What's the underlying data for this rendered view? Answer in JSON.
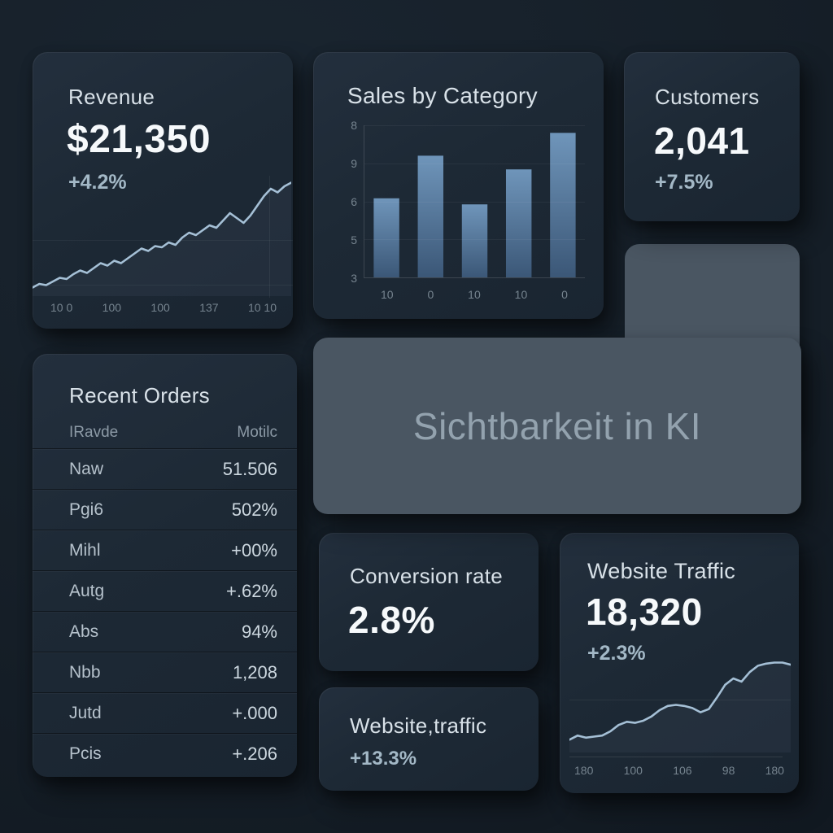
{
  "theme": {
    "background": "#151e27",
    "card_bg": "#1d2935",
    "banner_bg": "#4a5662",
    "title_color": "#d8e1e8",
    "value_color": "#f6f9fb",
    "delta_color": "#a3b8c6",
    "tick_color": "#76848f",
    "line_color": "#a5c0d6",
    "area_fill": "#a8c2d8",
    "bar_color_top": "#6f95ba",
    "bar_color_bottom": "#3b5777"
  },
  "cards": {
    "revenue": {
      "title": "Revenue",
      "value": "$21,350",
      "delta": "+4.2%"
    },
    "sales": {
      "title": "Sales by Category"
    },
    "customers": {
      "title": "Customers",
      "value": "2,041",
      "delta": "+7.5%"
    },
    "orders": {
      "title": "Recent Orders",
      "columns": [
        "IRavde",
        "Motilc"
      ],
      "rows": [
        [
          "Naw",
          "51.506"
        ],
        [
          "Pgi6",
          "502%"
        ],
        [
          "Mihl",
          "+00%"
        ],
        [
          "Autg",
          "+.62%"
        ],
        [
          "Abs",
          "94%"
        ],
        [
          "Nbb",
          "1,208"
        ],
        [
          "Jutd",
          "+.000"
        ],
        [
          "Pcis",
          "+.206"
        ]
      ]
    },
    "banner": {
      "title": "Sichtbarkeit in KI"
    },
    "conversion": {
      "title": "Conversion rate",
      "value": "2.8%"
    },
    "website_small": {
      "title": "Website,traffic",
      "delta": "+13.3%"
    },
    "traffic": {
      "title": "Website Traffic",
      "value": "18,320",
      "delta": "+2.3%"
    }
  },
  "chart_data": [
    {
      "id": "revenue-spark",
      "type": "line",
      "title": "Revenue trend",
      "x_tick_labels": [
        "10 0",
        "100",
        "100",
        "137",
        "10 10"
      ],
      "y": [
        93,
        90,
        91,
        88,
        85,
        86,
        82,
        79,
        81,
        77,
        73,
        75,
        71,
        73,
        69,
        65,
        61,
        63,
        59,
        60,
        56,
        58,
        52,
        48,
        50,
        46,
        42,
        44,
        38,
        32,
        36,
        40,
        34,
        26,
        18,
        12,
        15,
        10,
        7
      ],
      "ylim": [
        0,
        100
      ],
      "grid": true,
      "legend": false
    },
    {
      "id": "sales-bars",
      "type": "bar",
      "title": "Sales by Category",
      "categories": [
        "10",
        "0",
        "10",
        "10",
        "0"
      ],
      "values": [
        52,
        80,
        48,
        71,
        95
      ],
      "y_tick_labels": [
        "8",
        "9",
        "6",
        "5",
        "3"
      ],
      "ylim": [
        0,
        100
      ],
      "grid": true,
      "legend": false
    },
    {
      "id": "traffic-spark",
      "type": "line",
      "title": "Website Traffic trend",
      "x_tick_labels": [
        "180",
        "100",
        "106",
        "98",
        "180"
      ],
      "y": [
        88,
        84,
        86,
        85,
        84,
        80,
        74,
        71,
        72,
        70,
        66,
        60,
        56,
        55,
        56,
        58,
        62,
        59,
        48,
        36,
        30,
        33,
        24,
        18,
        16,
        15,
        15,
        17
      ],
      "ylim": [
        0,
        100
      ],
      "grid": true,
      "legend": false
    }
  ]
}
